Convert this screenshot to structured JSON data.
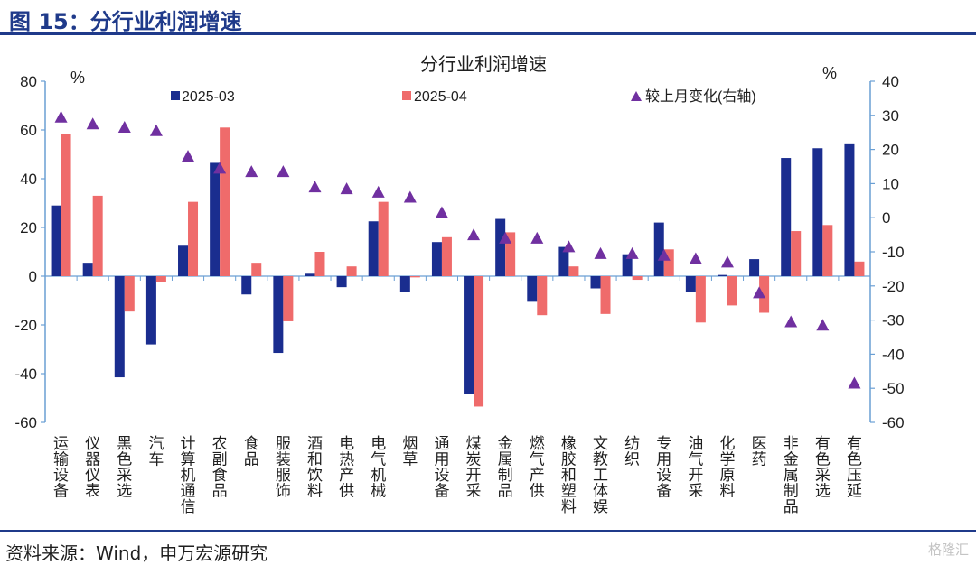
{
  "figure_title": "图 15：分行业利润增速",
  "source": "资料来源：Wind，申万宏源研究",
  "watermark": "格隆汇",
  "colors": {
    "series1": "#1a2d8f",
    "series2": "#ef6b6b",
    "marker": "#7030a0",
    "axis": "#6a9fd4",
    "rule": "#1f3a8a"
  },
  "chart_data": {
    "type": "bar",
    "title": "分行业利润增速",
    "ylabel_left": "%",
    "ylabel_right": "%",
    "ylim_left": [
      -60,
      80
    ],
    "yticks_left": [
      80,
      60,
      40,
      20,
      0,
      -20,
      -40,
      -60
    ],
    "ylim_right": [
      -60,
      40
    ],
    "yticks_right": [
      40,
      30,
      20,
      10,
      0,
      -10,
      -20,
      -30,
      -40,
      -50,
      -60
    ],
    "grid": false,
    "legend_position": "top",
    "categories": [
      "运输设备",
      "仪器仪表",
      "黑色采选",
      "汽车",
      "计算机通信",
      "农副食品",
      "食品",
      "服装服饰",
      "酒和饮料",
      "电热产供",
      "电气机械",
      "烟草",
      "通用设备",
      "煤炭开采",
      "金属制品",
      "燃气产供",
      "橡胶和塑料",
      "文教工体娱",
      "纺织",
      "专用设备",
      "油气开采",
      "化学原料",
      "医药",
      "非金属制品",
      "有色采选",
      "有色压延"
    ],
    "series": [
      {
        "name": "2025-03",
        "type": "bar",
        "axis": "left",
        "values": [
          29,
          5.5,
          -41.5,
          -28,
          12.5,
          46.5,
          -7.5,
          -31.5,
          1,
          -4.5,
          22.5,
          -6.5,
          14,
          -48.5,
          23.5,
          -10.5,
          12,
          -5,
          9,
          22,
          -6.5,
          0.5,
          7,
          48.5,
          52.5,
          54.5
        ]
      },
      {
        "name": "2025-04",
        "type": "bar",
        "axis": "left",
        "values": [
          58.5,
          33,
          -14.5,
          -2.5,
          30.5,
          61,
          5.5,
          -18.5,
          10,
          4,
          30.5,
          -0.5,
          16,
          -53.5,
          18,
          -16,
          4,
          -15.5,
          -1.5,
          11,
          -19,
          -12,
          -15,
          18.5,
          21,
          6
        ]
      },
      {
        "name": "较上月变化(右轴)",
        "type": "scatter",
        "axis": "right",
        "values": [
          29.5,
          27.5,
          26.5,
          25.5,
          18,
          14.5,
          13.5,
          13.5,
          9,
          8.5,
          7.5,
          6,
          1.5,
          -5,
          -6,
          -6,
          -8.5,
          -10.5,
          -10.5,
          -11,
          -12,
          -13,
          -22,
          -30.5,
          -31.5,
          -48.5
        ]
      }
    ]
  }
}
